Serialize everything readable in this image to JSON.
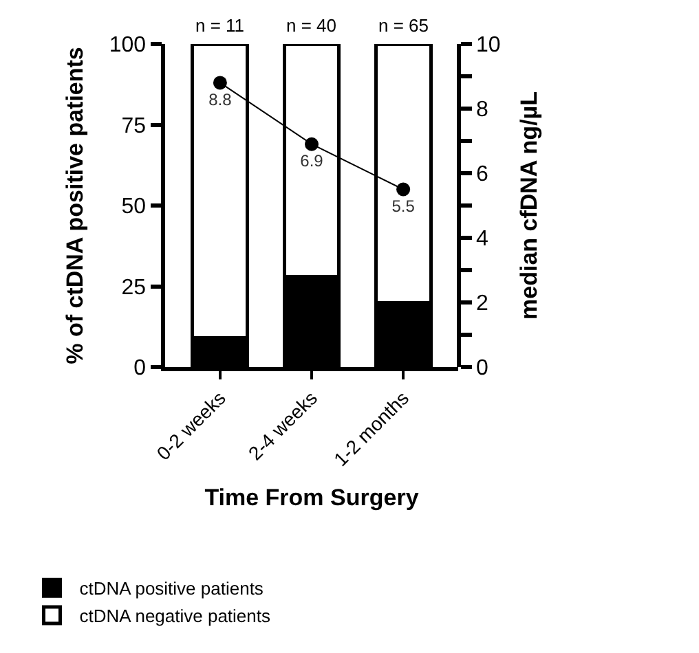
{
  "chart_data": {
    "type": "bar",
    "stacked": true,
    "categories": [
      "0-2 weeks",
      "2-4 weeks",
      "1-2 months"
    ],
    "xlabel": "Time From Surgery",
    "ylabel": "% of ctDNA positive patients",
    "y2label": "median cfDNA ng/µL",
    "series": [
      {
        "name": "ctDNA positive patients",
        "color": "#000000",
        "values": [
          9,
          28,
          20
        ]
      },
      {
        "name": "ctDNA negative patients",
        "color": "#ffffff",
        "values": [
          91,
          72,
          80
        ]
      },
      {
        "type": "line",
        "axis": "y2",
        "color": "#000000",
        "values": [
          8.8,
          6.9,
          5.5
        ],
        "value_labels": [
          "8.8",
          "6.9",
          "5.5"
        ]
      }
    ],
    "ylim": [
      0,
      100
    ],
    "yticks": [
      0,
      25,
      50,
      75,
      100
    ],
    "y2lim": [
      0,
      10
    ],
    "y2ticks": [
      0,
      {
        "value": 1,
        "label": null
      },
      2,
      {
        "value": 3,
        "label": null
      },
      4,
      {
        "value": 5,
        "label": null
      },
      6,
      {
        "value": 7,
        "label": null
      },
      8,
      {
        "value": 9,
        "label": null
      },
      10
    ],
    "annotations": [
      {
        "text": "n = 11",
        "x": "0-2 weeks",
        "y": 100
      },
      {
        "text": "n = 40",
        "x": "2-4 weeks",
        "y": 100
      },
      {
        "text": "n = 65",
        "x": "1-2 months",
        "y": 100
      }
    ],
    "marker": "circle",
    "legend": "bottom"
  }
}
